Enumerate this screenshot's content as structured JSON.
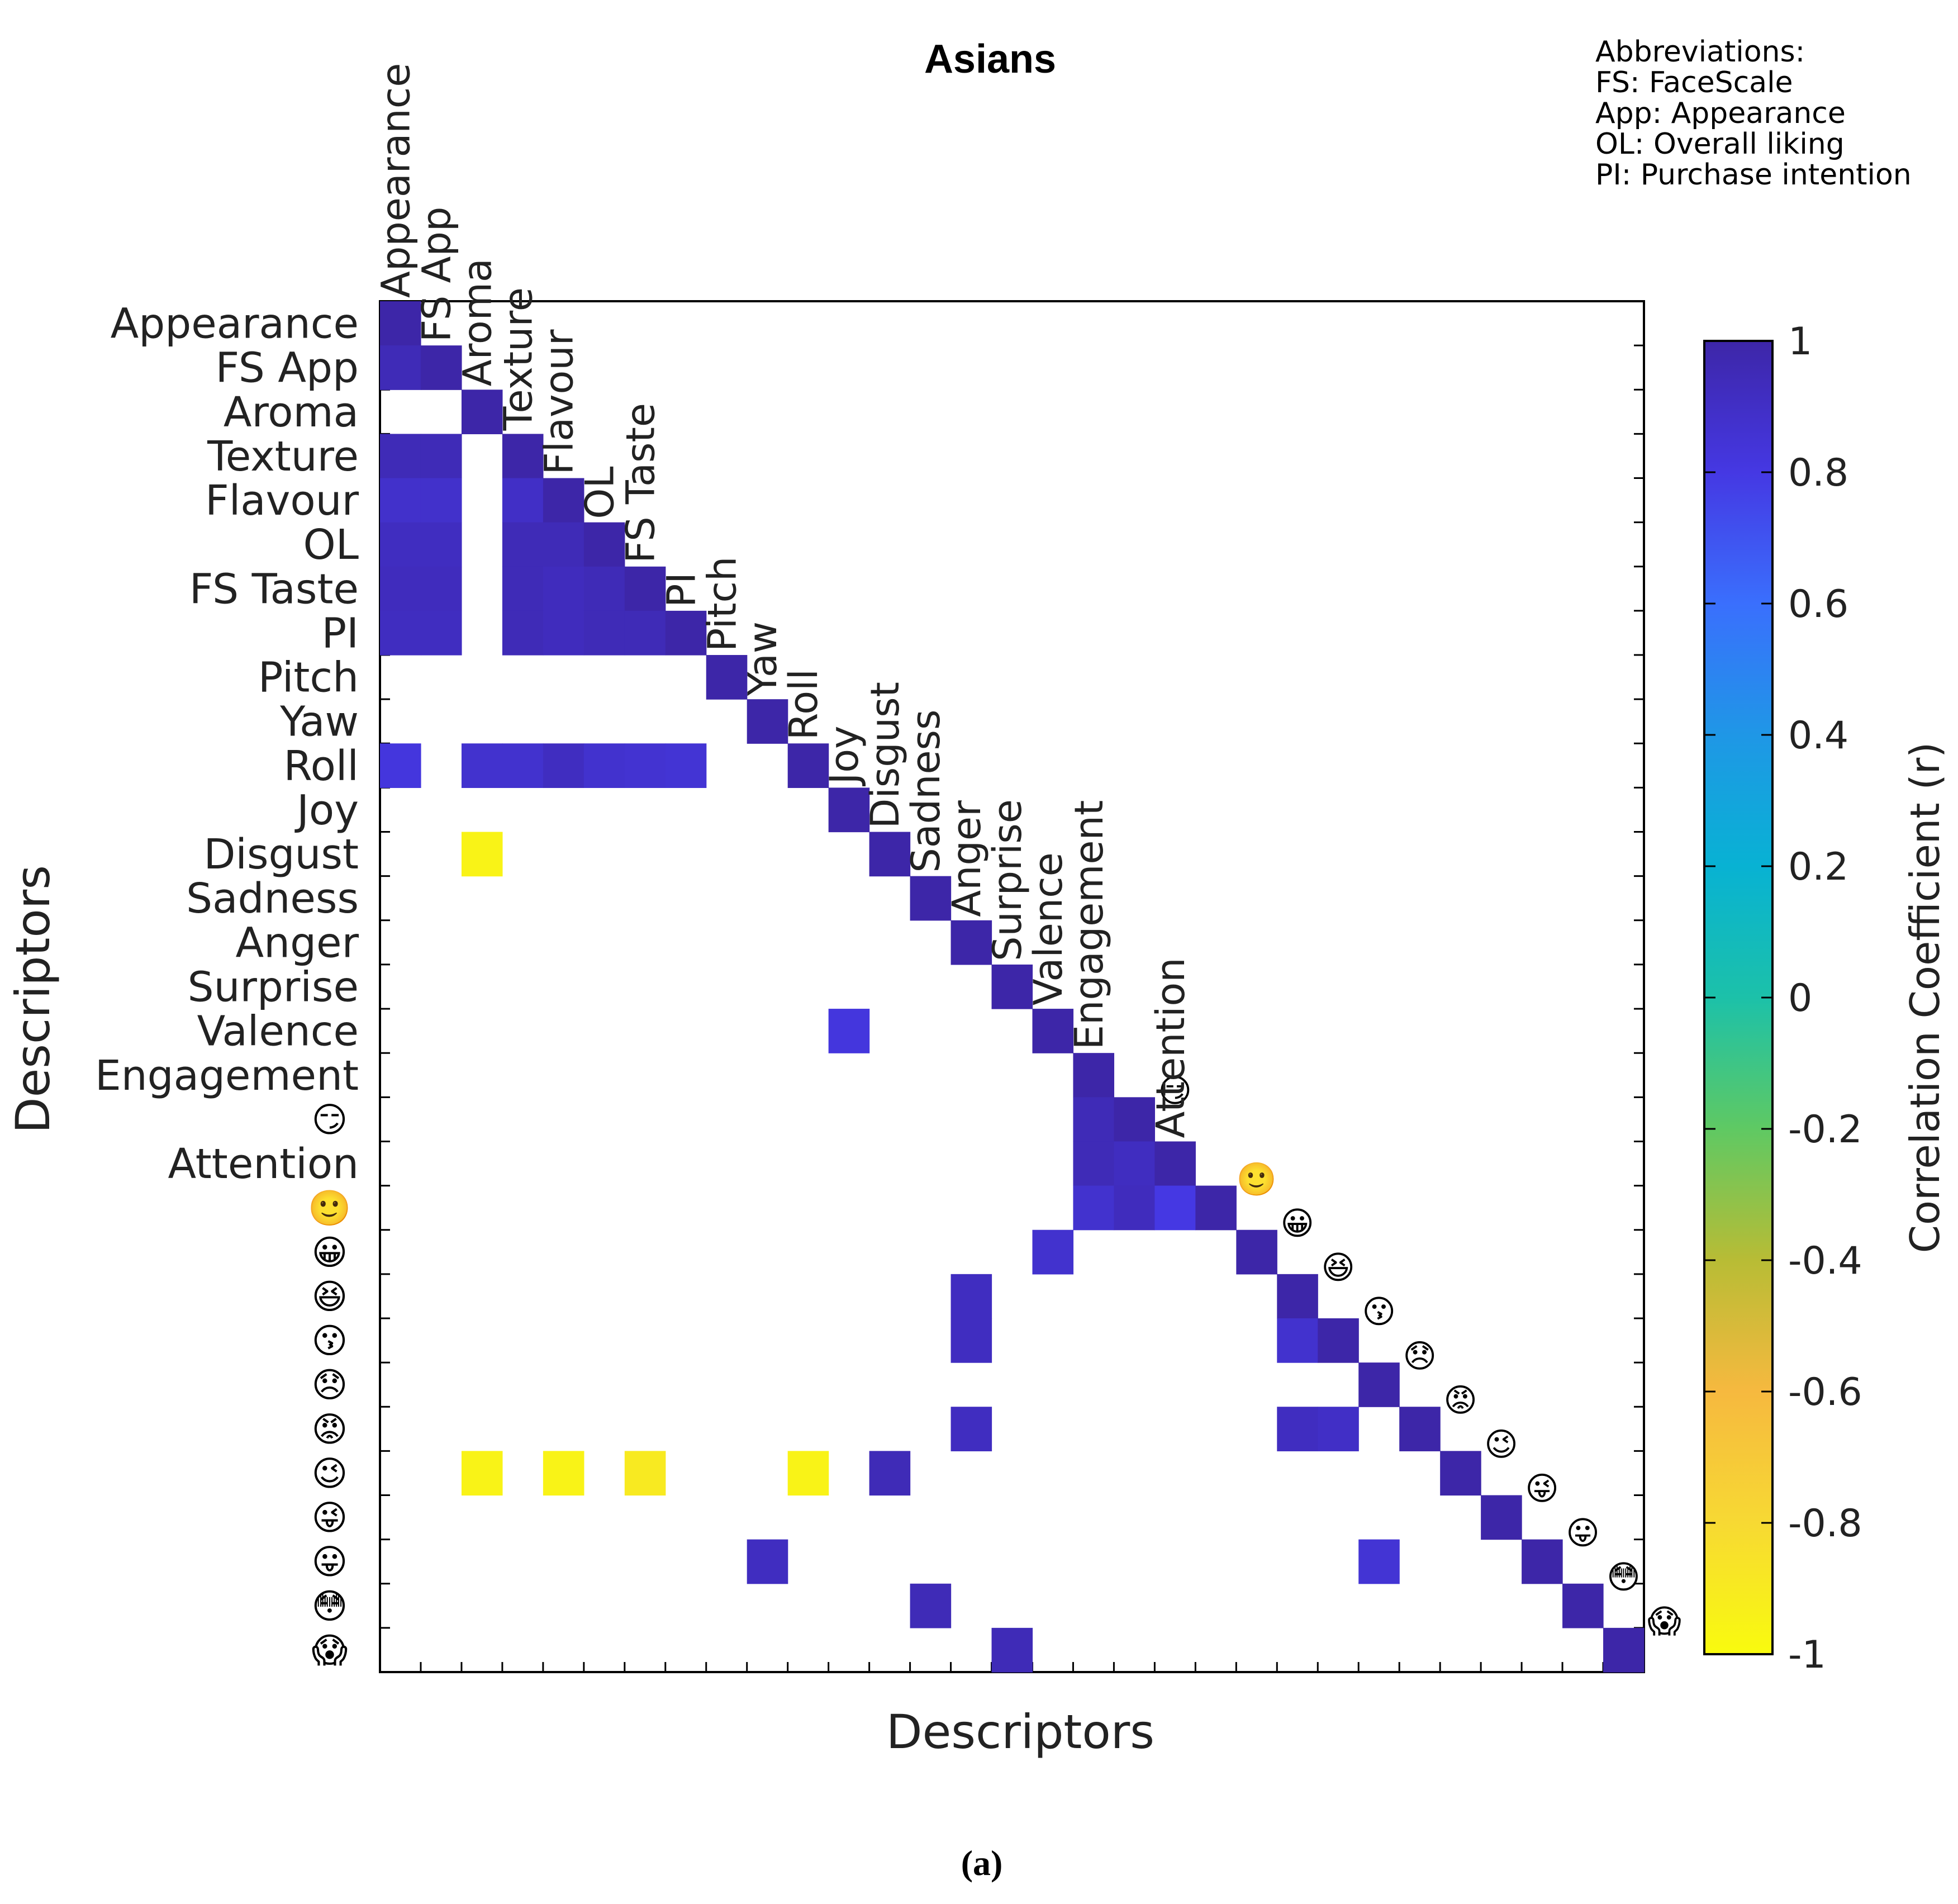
{
  "chart_data": {
    "type": "heatmap",
    "title": "Asians",
    "xlabel": "Descriptors",
    "ylabel": "Descriptors",
    "caption": "(a)",
    "abbreviations": [
      "Abbreviations:",
      "FS: FaceScale",
      "App: Appearance",
      "OL: Overall liking",
      "PI: Purchase intention"
    ],
    "colorbar": {
      "label": "Correlation Coefficient (r)",
      "range": [
        -1,
        1
      ],
      "ticks": [
        "1",
        "0.8",
        "0.6",
        "0.4",
        "0.2",
        "0",
        "-0.2",
        "-0.4",
        "-0.6",
        "-0.8",
        "-1"
      ],
      "tick_values": [
        1,
        0.8,
        0.6,
        0.4,
        0.2,
        0,
        -0.2,
        -0.4,
        -0.6,
        -0.8,
        -1
      ],
      "colormap": [
        "#3d26a8",
        "#4538e3",
        "#3a6ffd",
        "#1f97e6",
        "#08b2d3",
        "#1cc1a9",
        "#5fc963",
        "#b8bc35",
        "#f6b93f",
        "#f7d933",
        "#f9fb0e"
      ]
    },
    "labels": [
      "Appearance",
      "FS App",
      "Aroma",
      "Texture",
      "Flavour",
      "OL",
      "FS Taste",
      "PI",
      "Pitch",
      "Yaw",
      "Roll",
      "Joy",
      "Disgust",
      "Sadness",
      "Anger",
      "Surprise",
      "Valence",
      "Engagement",
      "smirk-emoji",
      "Attention",
      "smile-emoji",
      "grin-emoji",
      "laugh-emoji",
      "kiss-emoji",
      "disappointed-emoji",
      "angry-emoji",
      "wink-emoji",
      "stuck-out-tongue-wink-emoji",
      "stuck-out-tongue-emoji",
      "flushed-emoji",
      "scream-emoji"
    ],
    "emoji_glyphs": {
      "smirk-emoji": "😏",
      "smile-emoji": "🙂",
      "grin-emoji": "😀",
      "laugh-emoji": "😆",
      "kiss-emoji": "😗",
      "disappointed-emoji": "😞",
      "angry-emoji": "😡",
      "wink-emoji": "😉",
      "stuck-out-tongue-wink-emoji": "😜",
      "stuck-out-tongue-emoji": "😛",
      "flushed-emoji": "😳",
      "scream-emoji": "😱"
    },
    "cells": [
      [
        0,
        0,
        1.0
      ],
      [
        1,
        0,
        0.95
      ],
      [
        1,
        1,
        1.0
      ],
      [
        2,
        2,
        1.0
      ],
      [
        3,
        0,
        0.95
      ],
      [
        3,
        1,
        0.95
      ],
      [
        3,
        3,
        1.0
      ],
      [
        4,
        0,
        0.88
      ],
      [
        4,
        1,
        0.88
      ],
      [
        4,
        3,
        0.9
      ],
      [
        4,
        4,
        1.0
      ],
      [
        5,
        0,
        0.92
      ],
      [
        5,
        1,
        0.92
      ],
      [
        5,
        3,
        0.95
      ],
      [
        5,
        4,
        0.95
      ],
      [
        5,
        5,
        1.0
      ],
      [
        6,
        0,
        0.93
      ],
      [
        6,
        1,
        0.93
      ],
      [
        6,
        3,
        0.95
      ],
      [
        6,
        4,
        0.93
      ],
      [
        6,
        5,
        0.95
      ],
      [
        6,
        6,
        1.0
      ],
      [
        7,
        0,
        0.92
      ],
      [
        7,
        1,
        0.92
      ],
      [
        7,
        3,
        0.95
      ],
      [
        7,
        4,
        0.93
      ],
      [
        7,
        5,
        0.95
      ],
      [
        7,
        6,
        0.95
      ],
      [
        7,
        7,
        1.0
      ],
      [
        8,
        8,
        1.0
      ],
      [
        9,
        9,
        1.0
      ],
      [
        10,
        0,
        0.82
      ],
      [
        10,
        2,
        0.87
      ],
      [
        10,
        3,
        0.87
      ],
      [
        10,
        4,
        0.92
      ],
      [
        10,
        5,
        0.87
      ],
      [
        10,
        6,
        0.86
      ],
      [
        10,
        7,
        0.85
      ],
      [
        10,
        10,
        1.0
      ],
      [
        11,
        11,
        1.0
      ],
      [
        12,
        2,
        -0.95
      ],
      [
        12,
        12,
        1.0
      ],
      [
        13,
        13,
        1.0
      ],
      [
        14,
        14,
        1.0
      ],
      [
        15,
        15,
        1.0
      ],
      [
        16,
        11,
        0.82
      ],
      [
        16,
        16,
        1.0
      ],
      [
        17,
        17,
        1.0
      ],
      [
        18,
        17,
        0.95
      ],
      [
        18,
        18,
        1.0
      ],
      [
        19,
        17,
        0.95
      ],
      [
        19,
        18,
        0.92
      ],
      [
        19,
        19,
        1.0
      ],
      [
        20,
        17,
        0.87
      ],
      [
        20,
        18,
        0.93
      ],
      [
        20,
        19,
        0.8
      ],
      [
        20,
        20,
        1.0
      ],
      [
        21,
        16,
        0.87
      ],
      [
        21,
        21,
        1.0
      ],
      [
        22,
        14,
        0.92
      ],
      [
        22,
        22,
        1.0
      ],
      [
        23,
        14,
        0.92
      ],
      [
        23,
        22,
        0.87
      ],
      [
        23,
        23,
        1.0
      ],
      [
        24,
        24,
        1.0
      ],
      [
        25,
        14,
        0.92
      ],
      [
        25,
        22,
        0.92
      ],
      [
        25,
        23,
        0.9
      ],
      [
        25,
        25,
        1.0
      ],
      [
        26,
        2,
        -0.95
      ],
      [
        26,
        4,
        -0.95
      ],
      [
        26,
        6,
        -0.9
      ],
      [
        26,
        10,
        -0.95
      ],
      [
        26,
        12,
        0.95
      ],
      [
        26,
        26,
        1.0
      ],
      [
        27,
        27,
        1.0
      ],
      [
        28,
        9,
        0.92
      ],
      [
        28,
        24,
        0.85
      ],
      [
        28,
        28,
        1.0
      ],
      [
        29,
        13,
        0.95
      ],
      [
        29,
        29,
        1.0
      ],
      [
        30,
        15,
        0.95
      ],
      [
        30,
        30,
        1.0
      ]
    ]
  }
}
